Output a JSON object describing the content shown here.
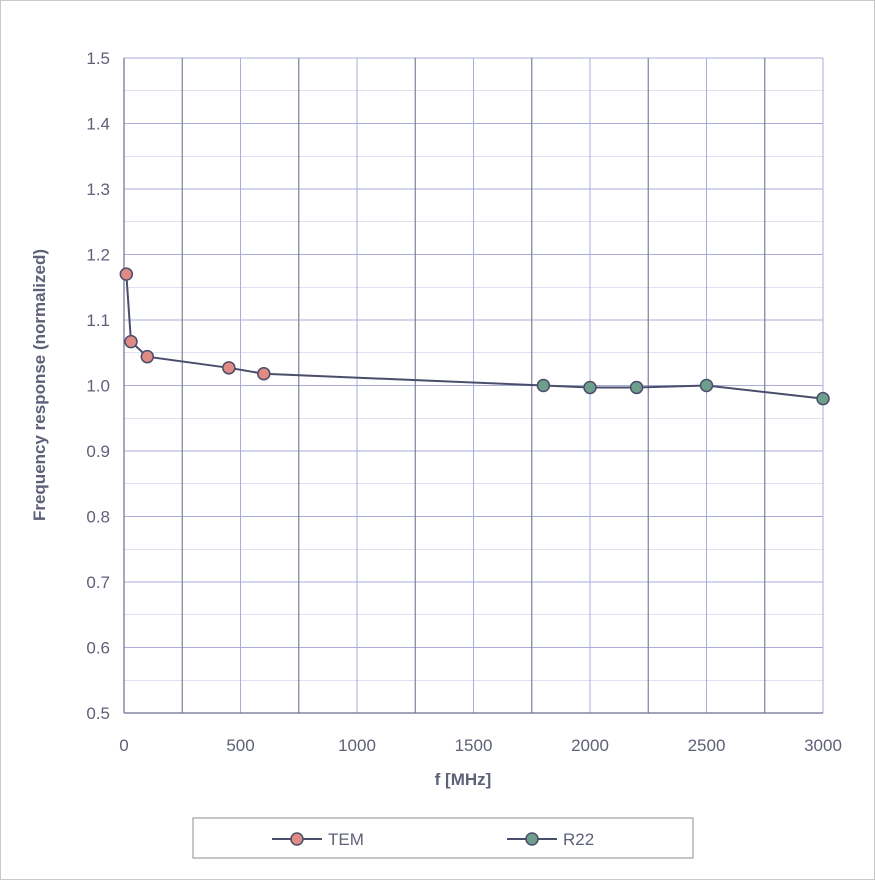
{
  "chart_data": {
    "type": "line",
    "title": "",
    "xlabel": "f [MHz]",
    "ylabel": "Frequency response (normalized)",
    "xlim": [
      0,
      3000
    ],
    "ylim": [
      0.5,
      1.5
    ],
    "x_ticks": [
      "0",
      "500",
      "1000",
      "1500",
      "2000",
      "2500",
      "3000"
    ],
    "y_ticks": [
      "0.5",
      "0.6",
      "0.7",
      "0.8",
      "0.9",
      "1.0",
      "1.1",
      "1.2",
      "1.3",
      "1.4",
      "1.5"
    ],
    "grid": true,
    "legend_position": "bottom",
    "series": [
      {
        "name": "TEM",
        "color": "#e08a86",
        "marker": "circle",
        "x": [
          10,
          30,
          100,
          450,
          600
        ],
        "y": [
          1.17,
          1.067,
          1.044,
          1.027,
          1.018
        ]
      },
      {
        "name": "R22",
        "color": "#6e9f8c",
        "marker": "circle",
        "x": [
          1800,
          2000,
          2200,
          2500,
          3000
        ],
        "y": [
          1.0,
          0.997,
          0.997,
          1.0,
          0.98
        ]
      }
    ],
    "line_color": "#4a4e6b",
    "grid_color": "#a9acdc",
    "axis_text_color": "#5e6178"
  }
}
